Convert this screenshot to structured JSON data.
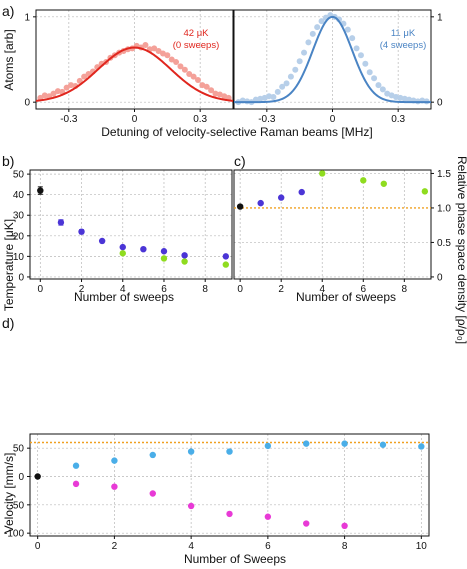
{
  "colors": {
    "red_fit": "#e0261e",
    "red_pts": "#f4a199",
    "blue_fit": "#4a84c4",
    "blue_pts": "#b7cfe9",
    "black": "#111111",
    "purple": "#4b35d6",
    "green": "#8fdc1f",
    "orange": "#f0a020",
    "cyan": "#4aaee8",
    "magenta": "#e83ad6"
  },
  "chart_data": [
    {
      "id": "a-left",
      "type": "scatter",
      "panel_letter": "a)",
      "ylabel": "Atoms  [arb]",
      "xlim": [
        -0.45,
        0.45
      ],
      "ylim": [
        -0.08,
        1.08
      ],
      "xticks": [
        -0.3,
        0,
        0.3
      ],
      "xtick_labels": [
        "-0.3",
        "0",
        "0.3"
      ],
      "yticks": [
        0,
        1
      ],
      "ytick_labels": [
        "0",
        "1"
      ],
      "annotation": [
        "42 μK",
        "(0 sweeps)"
      ],
      "series": [
        {
          "kind": "points",
          "color": "red_pts",
          "x": [
            -0.43,
            -0.41,
            -0.39,
            -0.37,
            -0.35,
            -0.33,
            -0.31,
            -0.29,
            -0.27,
            -0.25,
            -0.23,
            -0.21,
            -0.19,
            -0.17,
            -0.15,
            -0.13,
            -0.11,
            -0.09,
            -0.07,
            -0.05,
            -0.03,
            -0.01,
            0.01,
            0.03,
            0.05,
            0.07,
            0.09,
            0.11,
            0.13,
            0.15,
            0.17,
            0.19,
            0.21,
            0.23,
            0.25,
            0.27,
            0.29,
            0.31,
            0.33,
            0.35,
            0.37,
            0.39,
            0.41,
            0.43
          ],
          "y": [
            0.05,
            0.08,
            0.07,
            0.1,
            0.13,
            0.12,
            0.17,
            0.2,
            0.19,
            0.25,
            0.3,
            0.33,
            0.36,
            0.41,
            0.45,
            0.47,
            0.52,
            0.55,
            0.58,
            0.6,
            0.62,
            0.63,
            0.66,
            0.64,
            0.67,
            0.62,
            0.63,
            0.6,
            0.57,
            0.55,
            0.5,
            0.47,
            0.42,
            0.38,
            0.33,
            0.3,
            0.26,
            0.2,
            0.18,
            0.14,
            0.1,
            0.09,
            0.07,
            0.05
          ]
        },
        {
          "kind": "gaussian",
          "color": "red_fit",
          "amp": 0.64,
          "sigma": 0.165,
          "offset": 0.0
        }
      ]
    },
    {
      "id": "a-right",
      "type": "scatter",
      "xlim": [
        -0.45,
        0.45
      ],
      "ylim": [
        -0.08,
        1.08
      ],
      "xticks": [
        -0.3,
        0,
        0.3
      ],
      "xtick_labels": [
        "-0.3",
        "0",
        "0.3"
      ],
      "yticks": [
        0,
        1
      ],
      "ytick_labels": [
        "0",
        "1"
      ],
      "xlabel": "Detuning of velocity-selective Raman beams  [MHz]",
      "annotation": [
        "11 μK",
        "(4 sweeps)"
      ],
      "series": [
        {
          "kind": "points",
          "color": "blue_pts",
          "x": [
            -0.43,
            -0.41,
            -0.39,
            -0.37,
            -0.35,
            -0.33,
            -0.31,
            -0.29,
            -0.27,
            -0.25,
            -0.23,
            -0.21,
            -0.19,
            -0.17,
            -0.15,
            -0.13,
            -0.11,
            -0.09,
            -0.07,
            -0.05,
            -0.03,
            -0.01,
            0.01,
            0.03,
            0.05,
            0.07,
            0.09,
            0.11,
            0.13,
            0.15,
            0.17,
            0.19,
            0.21,
            0.23,
            0.25,
            0.27,
            0.29,
            0.31,
            0.33,
            0.35,
            0.37,
            0.39,
            0.41,
            0.43
          ],
          "y": [
            0.0,
            0.02,
            0.01,
            0.0,
            0.03,
            0.04,
            0.05,
            0.07,
            0.06,
            0.12,
            0.18,
            0.22,
            0.3,
            0.38,
            0.48,
            0.58,
            0.7,
            0.8,
            0.88,
            0.95,
            0.99,
            1.02,
            1.0,
            0.97,
            0.92,
            0.85,
            0.75,
            0.63,
            0.55,
            0.45,
            0.35,
            0.28,
            0.2,
            0.15,
            0.1,
            0.08,
            0.06,
            0.05,
            0.04,
            0.03,
            0.02,
            0.01,
            0.02,
            0.01
          ]
        },
        {
          "kind": "gaussian",
          "color": "blue_fit",
          "amp": 1.0,
          "sigma": 0.09,
          "offset": 0.0
        }
      ]
    },
    {
      "id": "b",
      "type": "scatter",
      "panel_letter": "b)",
      "xlabel": "Number of sweeps",
      "ylabel": "Temperature  [μK]",
      "xlim": [
        -0.5,
        9.3
      ],
      "ylim": [
        -1,
        52
      ],
      "xticks": [
        0,
        2,
        4,
        6,
        8
      ],
      "xtick_labels": [
        "0",
        "2",
        "4",
        "6",
        "8"
      ],
      "yticks": [
        0,
        10,
        20,
        30,
        40,
        50
      ],
      "ytick_labels": [
        "0",
        "10",
        "20",
        "30",
        "40",
        "50"
      ],
      "series": [
        {
          "kind": "points",
          "color": "black",
          "x": [
            0
          ],
          "y": [
            42
          ],
          "err": [
            1.8
          ]
        },
        {
          "kind": "points",
          "color": "purple",
          "x": [
            1,
            2,
            3,
            4,
            5,
            6,
            7,
            9
          ],
          "y": [
            26.5,
            22,
            17.5,
            14.5,
            13.5,
            12.5,
            10.5,
            10
          ],
          "err": [
            1.3,
            1.0,
            0.6,
            0.5,
            0.5,
            0.5,
            0.5,
            0.5
          ]
        },
        {
          "kind": "points",
          "color": "green",
          "x": [
            4,
            6,
            7,
            9
          ],
          "y": [
            11.5,
            9,
            7.5,
            6
          ],
          "err": [
            0,
            0,
            0,
            0
          ]
        }
      ]
    },
    {
      "id": "c",
      "type": "scatter",
      "panel_letter": "c)",
      "xlabel": "Number of sweeps",
      "ylabel": "Relative phase space density  [ρ/ρ₀]",
      "xlim": [
        -0.3,
        9.3
      ],
      "ylim": [
        -0.03,
        1.55
      ],
      "xticks": [
        0,
        2,
        4,
        6,
        8
      ],
      "xtick_labels": [
        "0",
        "2",
        "4",
        "6",
        "8"
      ],
      "yticks": [
        0,
        0.5,
        1.0,
        1.5
      ],
      "ytick_labels": [
        "0",
        "0.5",
        "1.0",
        "1.5"
      ],
      "hline": {
        "y": 1.0,
        "color": "orange"
      },
      "series": [
        {
          "kind": "points",
          "color": "black",
          "x": [
            0
          ],
          "y": [
            1.02
          ]
        },
        {
          "kind": "points",
          "color": "purple",
          "x": [
            1,
            2,
            3
          ],
          "y": [
            1.07,
            1.15,
            1.23
          ]
        },
        {
          "kind": "points",
          "color": "green",
          "x": [
            4,
            6,
            7,
            9
          ],
          "y": [
            1.5,
            1.4,
            1.35,
            1.24
          ]
        }
      ]
    },
    {
      "id": "d",
      "type": "scatter",
      "panel_letter": "d)",
      "xlabel": "Number of Sweeps",
      "ylabel": "Velocity  [mm/s]",
      "xlim": [
        -0.2,
        10.2
      ],
      "ylim": [
        -105,
        75
      ],
      "xticks": [
        0,
        2,
        4,
        6,
        8,
        10
      ],
      "xtick_labels": [
        "0",
        "2",
        "4",
        "6",
        "8",
        "10"
      ],
      "yticks": [
        -100,
        -50,
        0,
        50
      ],
      "ytick_labels": [
        "-100",
        "-50",
        "0",
        "50"
      ],
      "hline": {
        "y": 60,
        "color": "orange"
      },
      "series": [
        {
          "kind": "points",
          "color": "black",
          "x": [
            0
          ],
          "y": [
            0
          ]
        },
        {
          "kind": "points",
          "color": "cyan",
          "x": [
            1,
            2,
            3,
            4,
            5,
            6,
            7,
            8,
            9,
            10
          ],
          "y": [
            19,
            28,
            38,
            44,
            44,
            54,
            58,
            58,
            56,
            53
          ]
        },
        {
          "kind": "points",
          "color": "magenta",
          "x": [
            1,
            2,
            3,
            4,
            5,
            6,
            7,
            8
          ],
          "y": [
            -13,
            -18,
            -30,
            -52,
            -66,
            -71,
            -83,
            -87
          ]
        }
      ]
    }
  ]
}
